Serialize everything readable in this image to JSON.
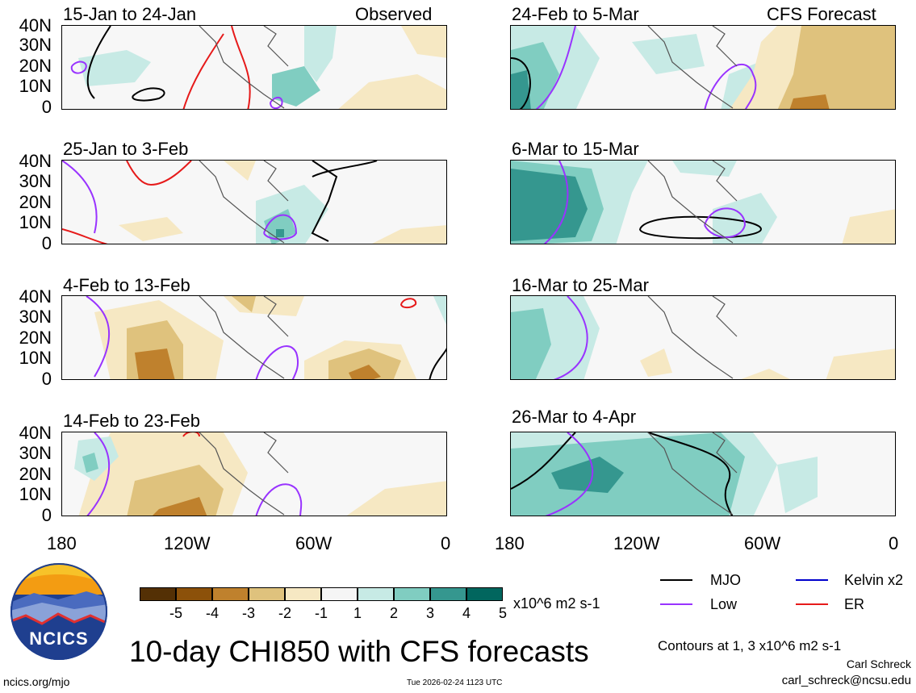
{
  "panels": [
    {
      "period": "15-Jan to 24-Jan",
      "tag": "Observed"
    },
    {
      "period": "24-Feb to 5-Mar",
      "tag": "CFS Forecast"
    },
    {
      "period": "25-Jan to 3-Feb",
      "tag": ""
    },
    {
      "period": "6-Mar to 15-Mar",
      "tag": ""
    },
    {
      "period": "4-Feb to 13-Feb",
      "tag": ""
    },
    {
      "period": "16-Mar to 25-Mar",
      "tag": ""
    },
    {
      "period": "14-Feb to 23-Feb",
      "tag": ""
    },
    {
      "period": "26-Mar to 4-Apr",
      "tag": ""
    }
  ],
  "y_axis": [
    "40N",
    "30N",
    "20N",
    "10N",
    "0"
  ],
  "x_axis": [
    "180",
    "120W",
    "60W",
    "0"
  ],
  "colorbar": {
    "labels": [
      "-5",
      "-4",
      "-3",
      "-2",
      "-1",
      "1",
      "2",
      "3",
      "4",
      "5"
    ],
    "units": "x10^6 m2 s-1",
    "colors": [
      "#543005",
      "#8c510a",
      "#bf812d",
      "#dfc27d",
      "#f6e8c3",
      "#f5f5f5",
      "#c7eae5",
      "#80cdc1",
      "#35978f",
      "#01665e",
      "#003c30"
    ]
  },
  "legend": {
    "items": [
      {
        "label": "MJO",
        "color": "#000000"
      },
      {
        "label": "Kelvin x2",
        "color": "#0000cc"
      },
      {
        "label": "Low",
        "color": "#9933ff"
      },
      {
        "label": "ER",
        "color": "#e61a1a"
      }
    ],
    "contours_note": "Contours at 1, 3 x10^6 m2 s-1",
    "author": "Carl Schreck",
    "email": "carl_schreck@ncsu.edu"
  },
  "logo": {
    "text": "NCICS"
  },
  "title": "10-day CHI850 with CFS forecasts",
  "footer": {
    "url": "ncics.org/mjo",
    "timestamp": "Tue 2026-02-24 1123 UTC"
  }
}
